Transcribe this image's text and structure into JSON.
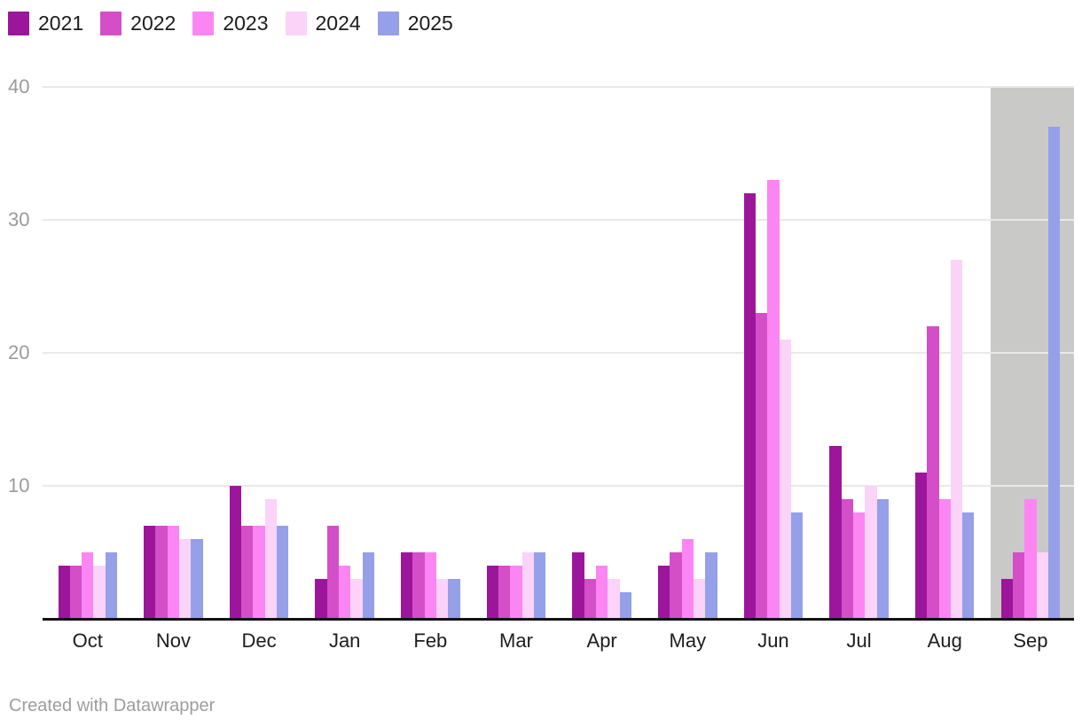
{
  "chart_data": {
    "type": "bar",
    "title": "",
    "xlabel": "",
    "ylabel": "",
    "categories": [
      "Oct",
      "Nov",
      "Dec",
      "Jan",
      "Feb",
      "Mar",
      "Apr",
      "May",
      "Jun",
      "Jul",
      "Aug",
      "Sep"
    ],
    "series": [
      {
        "name": "2021",
        "color": "#9c169c",
        "values": [
          4,
          7,
          10,
          3,
          5,
          4,
          5,
          4,
          32,
          13,
          11,
          3
        ]
      },
      {
        "name": "2022",
        "color": "#d44ec8",
        "values": [
          4,
          7,
          7,
          7,
          5,
          4,
          3,
          5,
          23,
          9,
          22,
          5
        ]
      },
      {
        "name": "2023",
        "color": "#fb86f3",
        "values": [
          5,
          7,
          7,
          4,
          5,
          4,
          4,
          6,
          33,
          8,
          9,
          9
        ]
      },
      {
        "name": "2024",
        "color": "#fbd3f9",
        "values": [
          4,
          6,
          9,
          3,
          3,
          5,
          3,
          3,
          21,
          10,
          27,
          5
        ]
      },
      {
        "name": "2025",
        "color": "#95a0e8",
        "values": [
          5,
          6,
          7,
          5,
          3,
          5,
          2,
          5,
          8,
          9,
          8,
          37
        ]
      }
    ],
    "ylim": [
      0,
      40
    ],
    "yticks": [
      10,
      20,
      30,
      40
    ],
    "grid": true,
    "legend_position": "top-left",
    "highlight": {
      "category": "Sep",
      "color": "#c9c9c7"
    }
  },
  "colors": {
    "background": "#ffffff",
    "gridline": "#e9e9e9",
    "baseline": "#131313",
    "y_tick_text": "#9b9b9b",
    "x_tick_text": "#1d1d1d",
    "legend_text": "#1c1c1c",
    "footer_text": "#9d9d9d"
  },
  "footer": {
    "credit": "Created with Datawrapper"
  }
}
